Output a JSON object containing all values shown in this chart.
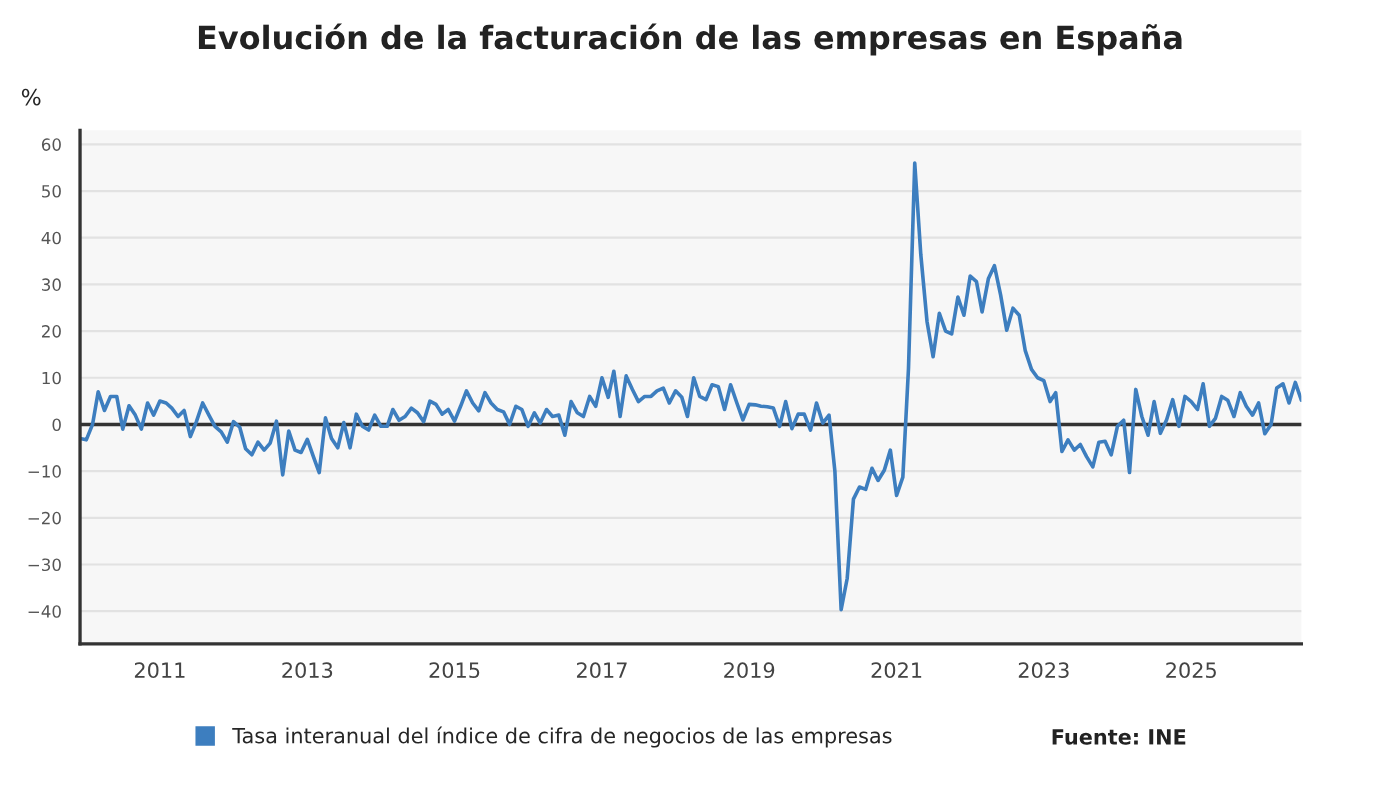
{
  "chart_data": {
    "type": "line",
    "title": "Evolución de la facturación de las empresas en España",
    "ylabel": "%",
    "x": [
      "2009-12",
      "2010-01",
      "2010-02",
      "2010-03",
      "2010-04",
      "2010-05",
      "2010-06",
      "2010-07",
      "2010-08",
      "2010-09",
      "2010-10",
      "2010-11",
      "2010-12",
      "2011-01",
      "2011-02",
      "2011-03",
      "2011-04",
      "2011-05",
      "2011-06",
      "2011-07",
      "2011-08",
      "2011-09",
      "2011-10",
      "2011-11",
      "2011-12",
      "2012-01",
      "2012-02",
      "2012-03",
      "2012-04",
      "2012-05",
      "2012-06",
      "2012-07",
      "2012-08",
      "2012-09",
      "2012-10",
      "2012-11",
      "2012-12",
      "2013-01",
      "2013-02",
      "2013-03",
      "2013-04",
      "2013-05",
      "2013-06",
      "2013-07",
      "2013-08",
      "2013-09",
      "2013-10",
      "2013-11",
      "2013-12",
      "2014-01",
      "2014-02",
      "2014-03",
      "2014-04",
      "2014-05",
      "2014-06",
      "2014-07",
      "2014-08",
      "2014-09",
      "2014-10",
      "2014-11",
      "2014-12",
      "2015-01",
      "2015-02",
      "2015-03",
      "2015-04",
      "2015-05",
      "2015-06",
      "2015-07",
      "2015-08",
      "2015-09",
      "2015-10",
      "2015-11",
      "2015-12",
      "2016-01",
      "2016-02",
      "2016-03",
      "2016-04",
      "2016-05",
      "2016-06",
      "2016-07",
      "2016-08",
      "2016-09",
      "2016-10",
      "2016-11",
      "2016-12",
      "2017-01",
      "2017-02",
      "2017-03",
      "2017-04",
      "2017-05",
      "2017-06",
      "2017-07",
      "2017-08",
      "2017-09",
      "2017-10",
      "2017-11",
      "2017-12",
      "2018-01",
      "2018-02",
      "2018-03",
      "2018-04",
      "2018-05",
      "2018-06",
      "2018-07",
      "2018-08",
      "2018-09",
      "2018-10",
      "2018-11",
      "2018-12",
      "2019-01",
      "2019-02",
      "2019-03",
      "2019-04",
      "2019-05",
      "2019-06",
      "2019-07",
      "2019-08",
      "2019-09",
      "2019-10",
      "2019-11",
      "2019-12",
      "2020-01",
      "2020-02",
      "2020-03",
      "2020-04",
      "2020-05",
      "2020-06",
      "2020-07",
      "2020-08",
      "2020-09",
      "2020-10",
      "2020-11",
      "2020-12",
      "2021-01",
      "2021-02",
      "2021-03",
      "2021-04",
      "2021-05",
      "2021-06",
      "2021-07",
      "2021-08",
      "2021-09",
      "2021-10",
      "2021-11",
      "2021-12",
      "2022-01",
      "2022-02",
      "2022-03",
      "2022-04",
      "2022-05",
      "2022-06",
      "2022-07",
      "2022-08",
      "2022-09",
      "2022-10",
      "2022-11",
      "2022-12",
      "2023-01",
      "2023-02",
      "2023-03",
      "2023-04",
      "2023-05",
      "2023-06",
      "2023-07",
      "2023-08",
      "2023-09",
      "2023-10",
      "2023-11",
      "2023-12",
      "2024-01",
      "2024-02",
      "2024-03",
      "2024-04",
      "2024-05",
      "2024-06",
      "2024-07",
      "2024-08",
      "2024-09",
      "2024-10",
      "2024-11",
      "2024-12",
      "2025-01",
      "2025-02",
      "2025-03",
      "2025-04",
      "2025-05",
      "2025-06",
      "2025-07",
      "2025-08",
      "2025-09",
      "2025-10",
      "2025-11",
      "2025-12",
      "2026-01",
      "2026-02",
      "2026-03",
      "2026-04",
      "2026-05",
      "2026-06",
      "2026-07"
    ],
    "series": [
      {
        "name": "Tasa interanual del índice de cifra de negocios de las empresas",
        "color": "#3d7ebf",
        "values": [
          -3,
          -3.3,
          0,
          7,
          3,
          6,
          6,
          -1,
          4,
          2,
          -1,
          4.6,
          2,
          5,
          4.6,
          3.5,
          1.7,
          3,
          -2.6,
          0.6,
          4.6,
          2,
          -0.4,
          -1.6,
          -3.8,
          0.6,
          -0.6,
          -5.2,
          -6.5,
          -3.8,
          -5.5,
          -4,
          0.7,
          -10.8,
          -1.4,
          -5.5,
          -6,
          -3.2,
          -7,
          -10.3,
          1.4,
          -3,
          -5,
          0.4,
          -5,
          2.2,
          -0.4,
          -1.2,
          2,
          -0.4,
          -0.4,
          3.2,
          0.9,
          1.7,
          3.5,
          2.5,
          0.6,
          5,
          4.3,
          2.2,
          3.2,
          0.7,
          4,
          7.2,
          4.6,
          2.9,
          6.8,
          4.6,
          3.2,
          2.7,
          0,
          3.9,
          3.2,
          -0.4,
          2.5,
          0.3,
          3.2,
          1.7,
          2,
          -2.3,
          4.9,
          2.5,
          1.7,
          6,
          3.9,
          10,
          5.8,
          11.4,
          1.7,
          10.4,
          7.5,
          4.9,
          6,
          6,
          7.2,
          7.8,
          4.6,
          7.2,
          5.8,
          1.7,
          10,
          6,
          5.3,
          8.5,
          8.1,
          3.2,
          8.5,
          4.6,
          1,
          4.3,
          4.2,
          3.9,
          3.8,
          3.5,
          -0.4,
          4.9,
          -0.9,
          2.2,
          2.2,
          -1.2,
          4.6,
          0.3,
          2,
          -10,
          -39.7,
          -33,
          -16,
          -13.4,
          -13.9,
          -9.4,
          -12,
          -9.8,
          -5.5,
          -15.2,
          -11.3,
          12,
          56,
          36.4,
          22,
          14.5,
          23.8,
          20,
          19.4,
          27.3,
          23.4,
          31.8,
          30.6,
          24.1,
          31.2,
          34,
          27.7,
          20.2,
          24.9,
          23.4,
          15.8,
          11.8,
          10,
          9.4,
          4.9,
          6.8,
          -5.8,
          -3.3,
          -5.5,
          -4.3,
          -6.9,
          -9.1,
          -3.8,
          -3.6,
          -6.5,
          -0.4,
          0.9,
          -10.3,
          7.5,
          1.7,
          -2.3,
          4.9,
          -1.9,
          1,
          5.3,
          -0.4,
          6,
          4.9,
          3.2,
          8.7,
          -0.4,
          1.3,
          6,
          5.2,
          1.7,
          6.8,
          3.9,
          2,
          4.6,
          -2,
          0,
          7.8,
          8.7,
          4.6,
          9,
          5.2
        ]
      }
    ],
    "xlim": [
      "2009-12",
      "2026-07"
    ],
    "xticks": [
      "2011",
      "2013",
      "2015",
      "2017",
      "2019",
      "2021",
      "2023",
      "2025"
    ],
    "ylim": [
      -47,
      63
    ],
    "yticks": [
      -40,
      -30,
      -20,
      -10,
      0,
      10,
      20,
      30,
      40,
      50,
      60
    ],
    "ref_lines": [
      {
        "axis": "y",
        "value": 0,
        "color": "#333333"
      }
    ],
    "grid": "y",
    "legend": "bottom",
    "marker": "none",
    "line_style": "solid",
    "annotations": [
      "Fuente: INE"
    ]
  }
}
